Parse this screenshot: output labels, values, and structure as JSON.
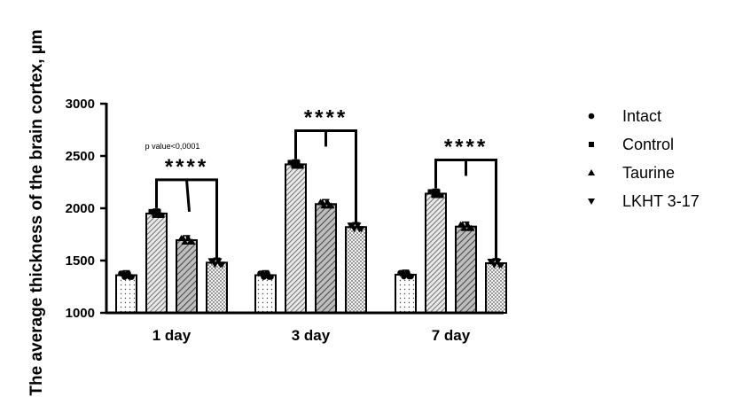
{
  "chart_data": {
    "type": "bar",
    "ylabel": "The average thickness of the brain cortex, µm",
    "xlabel": "",
    "ylim": [
      1000,
      3000
    ],
    "yticks": [
      "1000",
      "1500",
      "2000",
      "2500",
      "3000"
    ],
    "categories": [
      "1 day",
      "3 day",
      "7 day"
    ],
    "legend_position": "right",
    "series": [
      {
        "name": "Intact",
        "marker": "circle",
        "pattern": "dots",
        "values": [
          1360,
          1360,
          1365
        ]
      },
      {
        "name": "Control",
        "marker": "square",
        "pattern": "diagonal",
        "values": [
          1950,
          2420,
          2140
        ]
      },
      {
        "name": "Taurine",
        "marker": "triangle",
        "pattern": "diagonal-dark",
        "values": [
          1695,
          2040,
          1825
        ]
      },
      {
        "name": "LKHT 3-17",
        "marker": "triangle-down",
        "pattern": "checker",
        "values": [
          1480,
          1820,
          1475
        ]
      }
    ],
    "annotations": [
      {
        "category": "1 day",
        "text": "****",
        "note": "p value<0,0001"
      },
      {
        "category": "3 day",
        "text": "****",
        "note": ""
      },
      {
        "category": "7 day",
        "text": "****",
        "note": ""
      }
    ]
  }
}
